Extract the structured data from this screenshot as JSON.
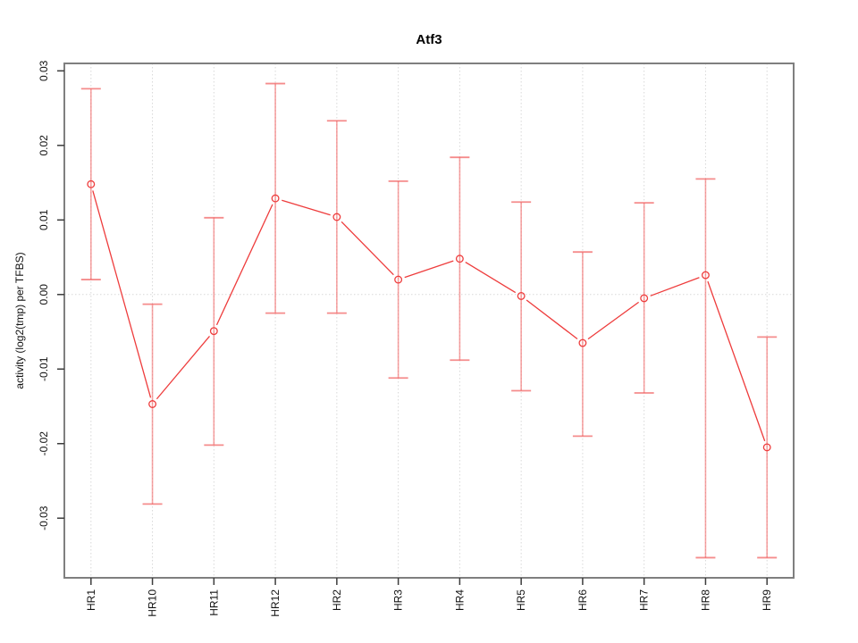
{
  "title": "Atf3",
  "chart_data": {
    "type": "line",
    "title": "Atf3",
    "xlabel": "",
    "ylabel": "activity (log2(tmp) per TFBS)",
    "marker": "open-circle",
    "line_style": "segments-with-gaps",
    "legend": "none",
    "grid": {
      "vertical_dotted_at_each_category": true,
      "horizontal_dotted_at_zero": true
    },
    "categories": [
      "HR1",
      "HR10",
      "HR11",
      "HR12",
      "HR2",
      "HR3",
      "HR4",
      "HR5",
      "HR6",
      "HR7",
      "HR8",
      "HR9"
    ],
    "series": [
      {
        "name": "activity",
        "values": [
          0.0148,
          -0.0147,
          -0.0049,
          0.0129,
          0.0104,
          0.002,
          0.0048,
          -0.0002,
          -0.0065,
          -0.0005,
          0.0026,
          -0.0205
        ]
      }
    ],
    "error_upper": [
      0.0276,
      -0.0013,
      0.0103,
      0.0283,
      0.0233,
      0.0152,
      0.0184,
      0.0124,
      0.0057,
      0.0123,
      0.0155,
      -0.0057
    ],
    "error_lower": [
      0.002,
      -0.0281,
      -0.0202,
      -0.0025,
      -0.0025,
      -0.0112,
      -0.0088,
      -0.0129,
      -0.019,
      -0.0132,
      -0.0353,
      -0.0353
    ],
    "yticks": [
      -0.03,
      -0.02,
      -0.01,
      0.0,
      0.01,
      0.02,
      0.03
    ],
    "ytick_labels": [
      "-0.03",
      "-0.02",
      "-0.01",
      "0.00",
      "0.01",
      "0.02",
      "0.03"
    ],
    "ylim": [
      -0.038,
      0.031
    ],
    "colors": {
      "series": "#ee3c3c",
      "error_bar": "#f26666",
      "grid": "#d8d8d8",
      "border": "#7f7f7f",
      "tick": "#3c3c3c",
      "text": "#111111",
      "background": "#ffffff"
    }
  }
}
